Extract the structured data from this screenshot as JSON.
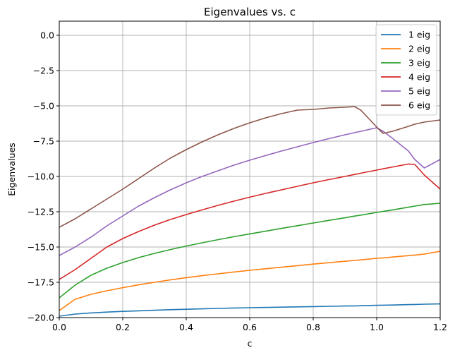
{
  "chart_data": {
    "type": "line",
    "title": "Eigenvalues vs. c",
    "xlabel": "c",
    "ylabel": "Eigenvalues",
    "xlim": [
      0,
      1.2
    ],
    "ylim": [
      -20,
      1
    ],
    "xticks": [
      0.0,
      0.2,
      0.4,
      0.6,
      0.8,
      1.0,
      1.2
    ],
    "xtick_labels": [
      "0.0",
      "0.2",
      "0.4",
      "0.6",
      "0.8",
      "1.0",
      "1.2"
    ],
    "yticks": [
      0.0,
      -2.5,
      -5.0,
      -7.5,
      -10.0,
      -12.5,
      -15.0,
      -17.5,
      -20.0
    ],
    "ytick_labels": [
      "0.0",
      "−2.5",
      "−5.0",
      "−7.5",
      "−10.0",
      "−12.5",
      "−15.0",
      "−17.5",
      "−20.0"
    ],
    "grid": true,
    "legend_position": "top-right",
    "x": [
      0.0,
      0.05,
      0.1,
      0.15,
      0.2,
      0.25,
      0.3,
      0.35,
      0.4,
      0.45,
      0.5,
      0.55,
      0.6,
      0.65,
      0.7,
      0.75,
      0.8,
      0.85,
      0.9,
      0.93,
      0.95,
      1.0,
      1.02,
      1.05,
      1.1,
      1.12,
      1.15,
      1.2
    ],
    "series": [
      {
        "name": "1 eig",
        "color": "#1f77b4",
        "values": [
          -19.9,
          -19.75,
          -19.67,
          -19.61,
          -19.56,
          -19.52,
          -19.48,
          -19.44,
          -19.41,
          -19.38,
          -19.35,
          -19.32,
          -19.3,
          -19.28,
          -19.26,
          -19.24,
          -19.22,
          -19.2,
          -19.18,
          -19.17,
          -19.16,
          -19.13,
          -19.12,
          -19.11,
          -19.08,
          -19.07,
          -19.05,
          -19.03
        ]
      },
      {
        "name": "2 eig",
        "color": "#ff7f0e",
        "values": [
          -19.5,
          -18.7,
          -18.35,
          -18.1,
          -17.88,
          -17.68,
          -17.5,
          -17.33,
          -17.17,
          -17.03,
          -16.9,
          -16.77,
          -16.65,
          -16.54,
          -16.43,
          -16.32,
          -16.21,
          -16.11,
          -16.01,
          -15.95,
          -15.91,
          -15.8,
          -15.77,
          -15.71,
          -15.61,
          -15.57,
          -15.5,
          -15.3
        ]
      },
      {
        "name": "3 eig",
        "color": "#2ca02c",
        "values": [
          -18.6,
          -17.7,
          -17.0,
          -16.5,
          -16.1,
          -15.75,
          -15.45,
          -15.18,
          -14.93,
          -14.7,
          -14.48,
          -14.27,
          -14.07,
          -13.88,
          -13.68,
          -13.49,
          -13.3,
          -13.11,
          -12.93,
          -12.81,
          -12.74,
          -12.55,
          -12.48,
          -12.37,
          -12.18,
          -12.1,
          -11.99,
          -11.9
        ]
      },
      {
        "name": "4 eig",
        "color": "#d62728",
        "values": [
          -17.3,
          -16.6,
          -15.8,
          -15.0,
          -14.4,
          -13.9,
          -13.45,
          -13.05,
          -12.7,
          -12.37,
          -12.05,
          -11.75,
          -11.47,
          -11.2,
          -10.95,
          -10.7,
          -10.45,
          -10.22,
          -10.0,
          -9.86,
          -9.77,
          -9.55,
          -9.46,
          -9.33,
          -9.12,
          -9.15,
          -9.9,
          -10.9
        ]
      },
      {
        "name": "5 eig",
        "color": "#9467bd",
        "values": [
          -15.6,
          -15.0,
          -14.3,
          -13.5,
          -12.8,
          -12.1,
          -11.5,
          -10.95,
          -10.45,
          -10.0,
          -9.6,
          -9.2,
          -8.85,
          -8.52,
          -8.2,
          -7.9,
          -7.6,
          -7.32,
          -7.05,
          -6.9,
          -6.8,
          -6.55,
          -6.8,
          -7.3,
          -8.2,
          -8.8,
          -9.4,
          -8.8
        ]
      },
      {
        "name": "6 eig",
        "color": "#8c564b",
        "values": [
          -13.6,
          -13.0,
          -12.3,
          -11.6,
          -10.9,
          -10.15,
          -9.4,
          -8.7,
          -8.1,
          -7.55,
          -7.05,
          -6.6,
          -6.2,
          -5.85,
          -5.55,
          -5.3,
          -5.25,
          -5.15,
          -5.1,
          -5.05,
          -5.3,
          -6.5,
          -6.95,
          -6.8,
          -6.45,
          -6.3,
          -6.15,
          -6.0
        ]
      }
    ]
  }
}
